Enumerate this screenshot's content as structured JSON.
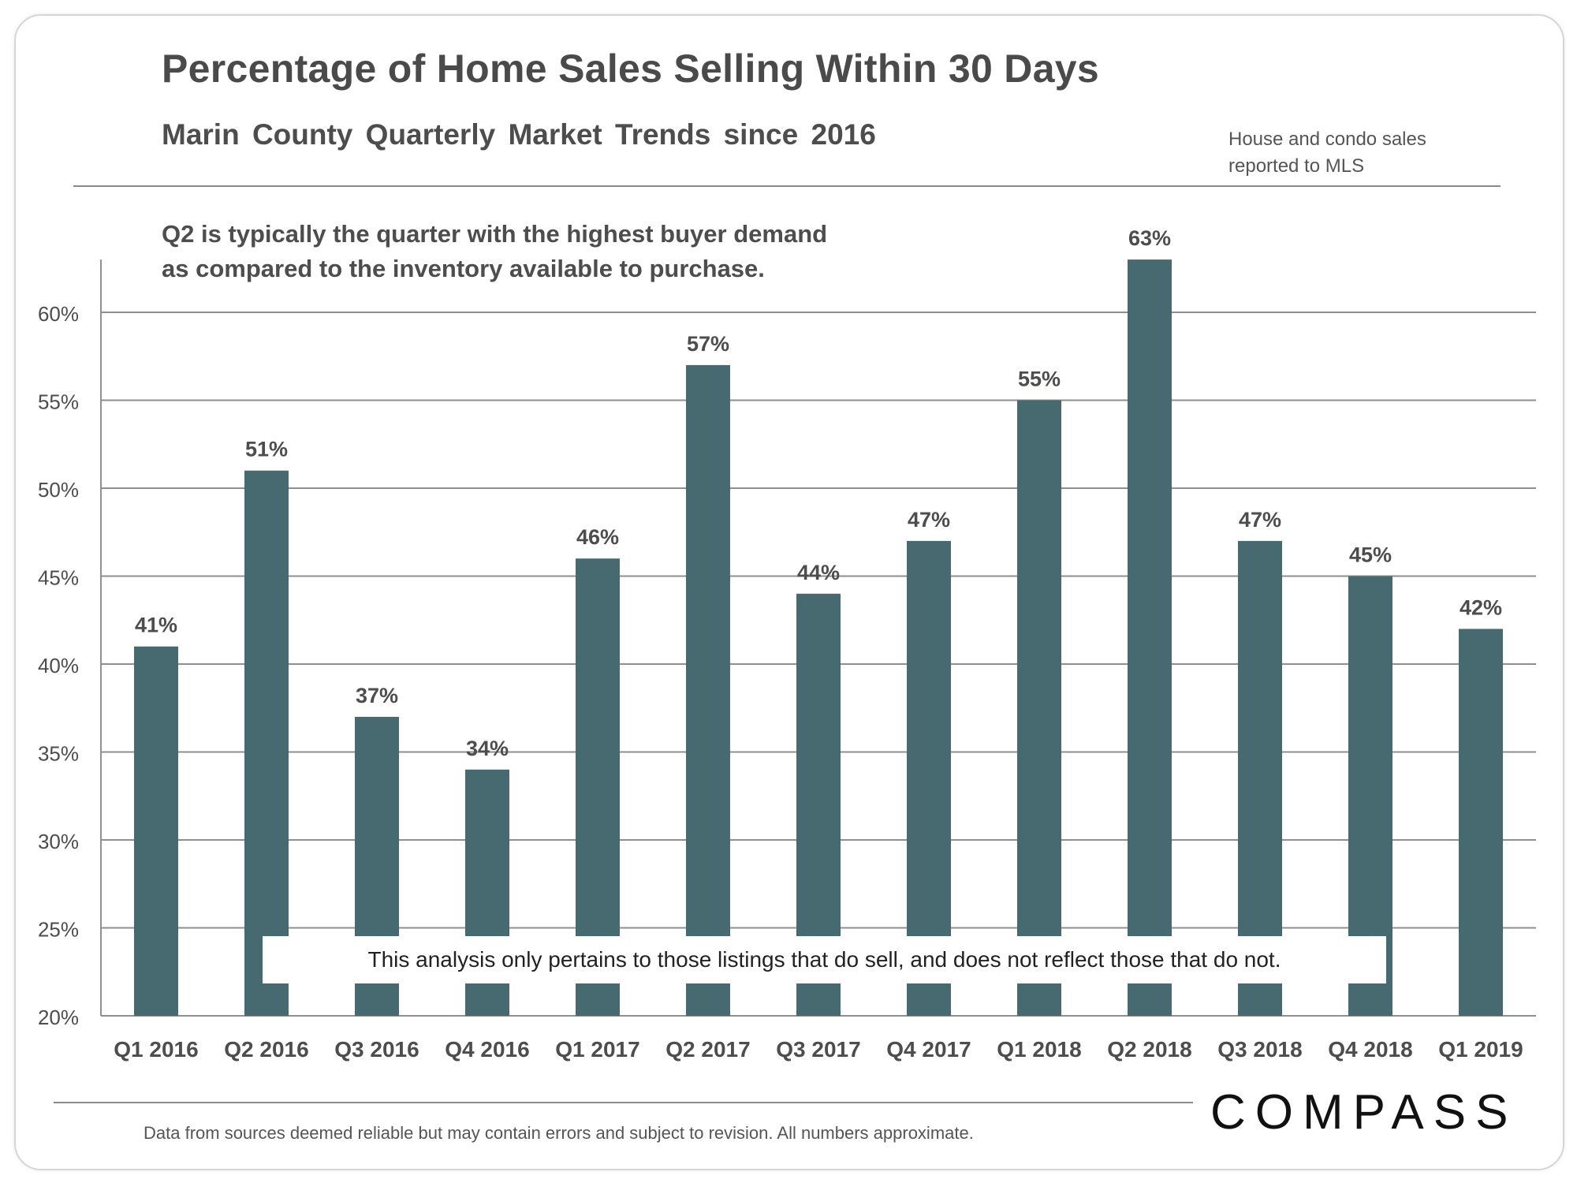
{
  "page": {
    "title": "Percentage of Home Sales Selling Within 30 Days",
    "subtitle": "Marin County Quarterly Market Trends since 2016",
    "source_note": "House and condo sales reported to MLS",
    "annotation_line1": "Q2 is typically the quarter with the highest buyer demand",
    "annotation_line2": "as compared to the inventory available to purchase.",
    "disclaimer": "This analysis only pertains to those listings that do sell, and does not reflect those that do not.",
    "footer_note": "Data from sources deemed reliable but may contain errors and subject to revision. All numbers approximate.",
    "logo_text": "COMPASS"
  },
  "colors": {
    "bar": "#476970",
    "gridline": "#8f8f8f",
    "axis_text": "#4d4d4d"
  },
  "chart_data": {
    "type": "bar",
    "categories": [
      "Q1 2016",
      "Q2 2016",
      "Q3 2016",
      "Q4 2016",
      "Q1 2017",
      "Q2 2017",
      "Q3 2017",
      "Q4 2017",
      "Q1 2018",
      "Q2 2018",
      "Q3 2018",
      "Q4 2018",
      "Q1 2019"
    ],
    "values": [
      41,
      51,
      37,
      34,
      46,
      57,
      44,
      47,
      55,
      63,
      47,
      45,
      42
    ],
    "value_labels": [
      "41%",
      "51%",
      "37%",
      "34%",
      "46%",
      "57%",
      "44%",
      "47%",
      "55%",
      "63%",
      "47%",
      "45%",
      "42%"
    ],
    "y_ticks": [
      20,
      25,
      30,
      35,
      40,
      45,
      50,
      55,
      60
    ],
    "y_tick_labels": [
      "20%",
      "25%",
      "30%",
      "35%",
      "40%",
      "45%",
      "50%",
      "55%",
      "60%"
    ],
    "ylim": [
      20,
      63
    ],
    "grid": true,
    "legend": "none"
  }
}
